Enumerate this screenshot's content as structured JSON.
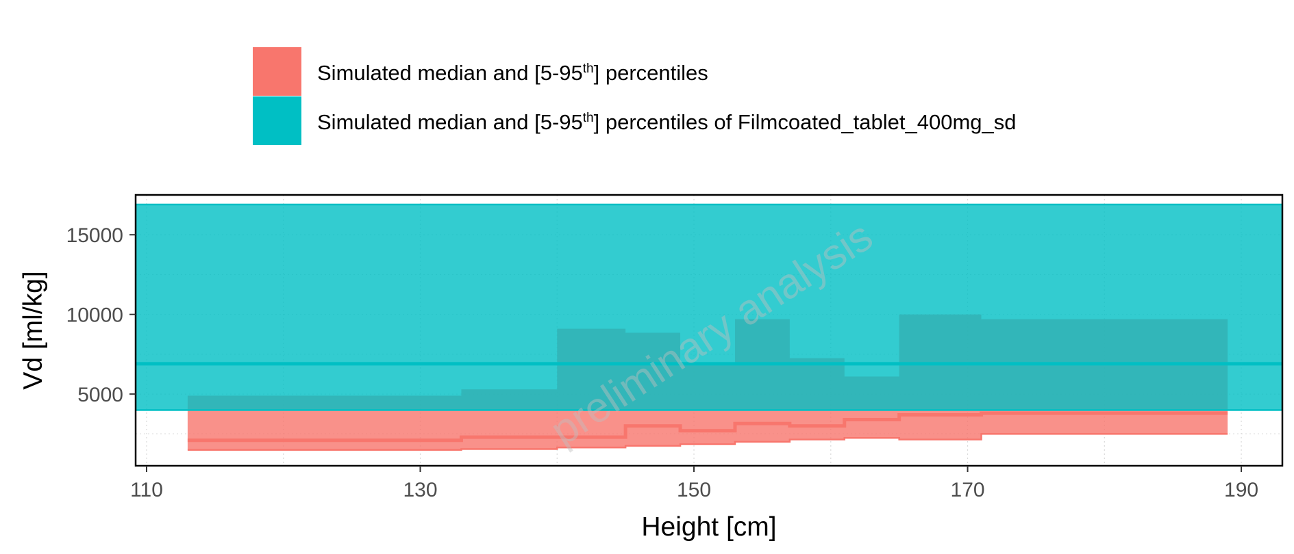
{
  "chart_data": {
    "type": "area",
    "xlabel": "Height [cm]",
    "ylabel": "Vd [ml/kg]",
    "xlim": [
      109.2,
      193.0
    ],
    "ylim": [
      500,
      17500
    ],
    "x_ticks": [
      110,
      130,
      150,
      170,
      190
    ],
    "x_tick_labels": [
      "110",
      "130",
      "150",
      "170",
      "190"
    ],
    "y_ticks": [
      5000,
      10000,
      15000
    ],
    "y_tick_labels": [
      "5000",
      "10000",
      "15000"
    ],
    "grid": true,
    "legend": {
      "position": "top",
      "entries": [
        {
          "prefix": "Simulated median and [5-95",
          "sup": "th",
          "suffix": "] percentiles"
        },
        {
          "prefix": "Simulated median and [5-95",
          "sup": "th",
          "suffix": "] percentiles of Filmcoated_tablet_400mg_sd"
        }
      ]
    },
    "watermark": "preliminary analysis",
    "series": [
      {
        "name": "Simulated median and [5-95th] percentiles",
        "color": "#F8766D",
        "kind": "step",
        "x_edges": [
          113,
          133,
          140,
          145,
          149,
          153,
          157,
          161,
          165,
          171,
          189
        ],
        "median": [
          2100,
          2300,
          2300,
          3000,
          2700,
          3150,
          3000,
          3400,
          3700,
          3800
        ],
        "p5": [
          1500,
          1550,
          1650,
          1750,
          1850,
          2000,
          2150,
          2250,
          2150,
          2500
        ],
        "p95": [
          4900,
          5300,
          9100,
          8850,
          6800,
          9700,
          7250,
          6100,
          10000,
          9700
        ]
      },
      {
        "name": "Simulated median and [5-95th] percentiles of Filmcoated_tablet_400mg_sd",
        "color": "#00BFC4",
        "kind": "band",
        "median": 6900,
        "p5": 4000,
        "p95": 16900
      }
    ]
  }
}
